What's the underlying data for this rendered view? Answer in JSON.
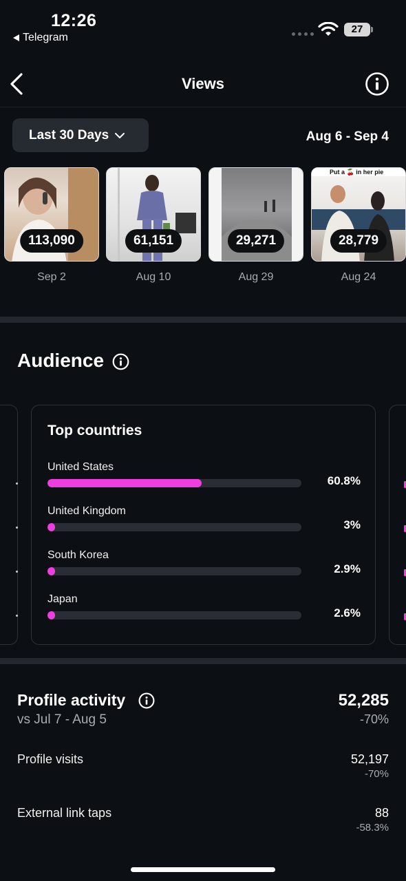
{
  "status_bar": {
    "time": "12:26",
    "back_app": "Telegram",
    "battery": "27"
  },
  "header": {
    "title": "Views"
  },
  "filter": {
    "range_label": "Last 30 Days",
    "date_range": "Aug 6 - Sep 4"
  },
  "top_posts": [
    {
      "views": "113,090",
      "date": "Sep 2"
    },
    {
      "views": "61,151",
      "date": "Aug 10"
    },
    {
      "views": "29,271",
      "date": "Aug 29"
    },
    {
      "views": "28,779",
      "date": "Aug 24",
      "caption": "Put a 🍒 in her pie"
    }
  ],
  "audience": {
    "title": "Audience",
    "top_countries": {
      "title": "Top countries",
      "items": [
        {
          "name": "United States",
          "pct": "60.8%",
          "fraction": 0.608
        },
        {
          "name": "United Kingdom",
          "pct": "3%",
          "fraction": 0.03
        },
        {
          "name": "South Korea",
          "pct": "2.9%",
          "fraction": 0.029
        },
        {
          "name": "Japan",
          "pct": "2.6%",
          "fraction": 0.026
        }
      ]
    }
  },
  "profile_activity": {
    "title": "Profile activity",
    "compare": "vs Jul 7 - Aug 5",
    "total": "52,285",
    "total_change": "-70%",
    "metrics": [
      {
        "label": "Profile visits",
        "value": "52,197",
        "change": "-70%"
      },
      {
        "label": "External link taps",
        "value": "88",
        "change": "-58.3%"
      }
    ]
  },
  "colors": {
    "accent": "#f03de0",
    "background": "#0c0f14",
    "muted": "#a9adb3"
  }
}
